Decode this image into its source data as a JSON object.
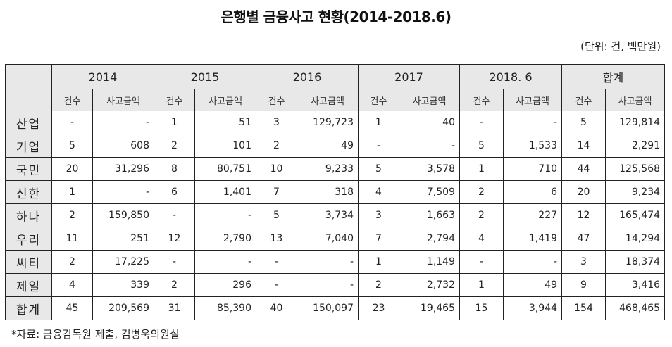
{
  "title": "은행별 금융사고 현황(2014-2018.6)",
  "unit": "(단위: 건, 백만원)",
  "table": {
    "years": [
      "2014",
      "2015",
      "2016",
      "2017",
      "2018. 6",
      "합계"
    ],
    "subheaders": {
      "count": "건수",
      "amount": "사고금액"
    },
    "rows": [
      {
        "bank": "산업",
        "cells": [
          "-",
          "-",
          "1",
          "51",
          "3",
          "129,723",
          "1",
          "40",
          "-",
          "-",
          "5",
          "129,814"
        ]
      },
      {
        "bank": "기업",
        "cells": [
          "5",
          "608",
          "2",
          "101",
          "2",
          "49",
          "-",
          "-",
          "5",
          "1,533",
          "14",
          "2,291"
        ]
      },
      {
        "bank": "국민",
        "cells": [
          "20",
          "31,296",
          "8",
          "80,751",
          "10",
          "9,233",
          "5",
          "3,578",
          "1",
          "710",
          "44",
          "125,568"
        ]
      },
      {
        "bank": "신한",
        "cells": [
          "1",
          "-",
          "6",
          "1,401",
          "7",
          "318",
          "4",
          "7,509",
          "2",
          "6",
          "20",
          "9,234"
        ]
      },
      {
        "bank": "하나",
        "cells": [
          "2",
          "159,850",
          "-",
          "-",
          "5",
          "3,734",
          "3",
          "1,663",
          "2",
          "227",
          "12",
          "165,474"
        ]
      },
      {
        "bank": "우리",
        "cells": [
          "11",
          "251",
          "12",
          "2,790",
          "13",
          "7,040",
          "7",
          "2,794",
          "4",
          "1,419",
          "47",
          "14,294"
        ]
      },
      {
        "bank": "씨티",
        "cells": [
          "2",
          "17,225",
          "-",
          "-",
          "-",
          "-",
          "1",
          "1,149",
          "-",
          "-",
          "3",
          "18,374"
        ]
      },
      {
        "bank": "제일",
        "cells": [
          "4",
          "339",
          "2",
          "296",
          "-",
          "-",
          "2",
          "2,732",
          "1",
          "49",
          "9",
          "3,416"
        ]
      },
      {
        "bank": "합계",
        "cells": [
          "45",
          "209,569",
          "31",
          "85,390",
          "40",
          "150,097",
          "23",
          "19,465",
          "15",
          "3,944",
          "154",
          "468,465"
        ]
      }
    ]
  },
  "source": "*자료: 금융감독원 제출, 김병욱의원실"
}
